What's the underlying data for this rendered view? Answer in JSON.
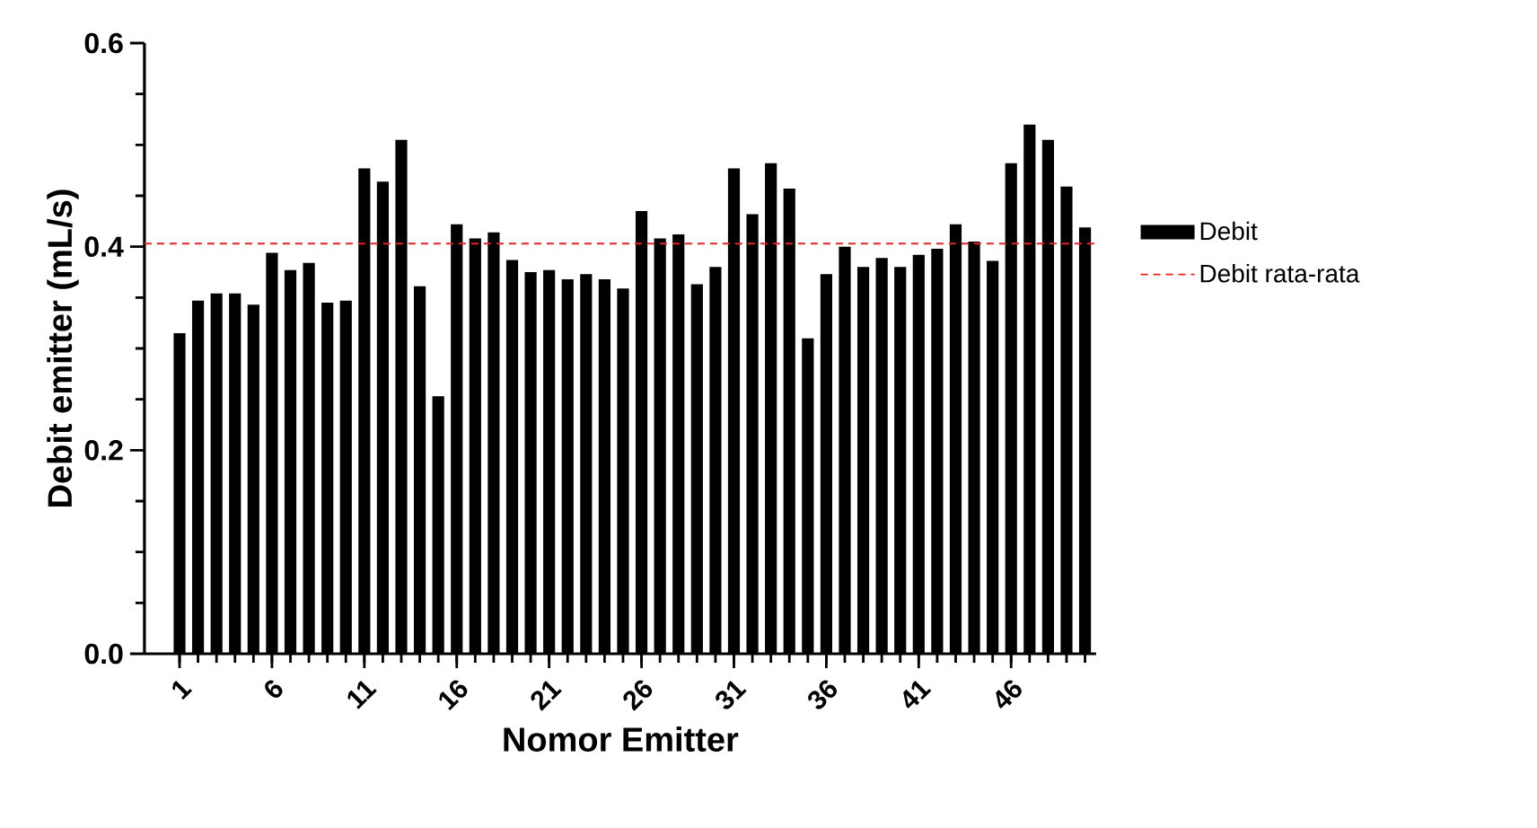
{
  "chart_data": {
    "type": "bar",
    "xlabel": "Nomor Emitter",
    "ylabel": "Debit emitter (mL/s)",
    "categories": [
      "1",
      null,
      null,
      null,
      null,
      "6",
      null,
      null,
      null,
      null,
      "11",
      null,
      null,
      null,
      null,
      "16",
      null,
      null,
      null,
      null,
      "21",
      null,
      null,
      null,
      null,
      "26",
      null,
      null,
      null,
      null,
      "31",
      null,
      null,
      null,
      null,
      "36",
      null,
      null,
      null,
      null,
      "41",
      null,
      null,
      null,
      null,
      "46",
      null,
      null,
      null,
      null
    ],
    "series": [
      {
        "name": "Debit",
        "color": "#000000",
        "values": [
          0.315,
          0.347,
          0.354,
          0.354,
          0.343,
          0.394,
          0.377,
          0.384,
          0.345,
          0.347,
          0.477,
          0.464,
          0.505,
          0.361,
          0.253,
          0.422,
          0.408,
          0.414,
          0.387,
          0.375,
          0.377,
          0.368,
          0.373,
          0.368,
          0.359,
          0.435,
          0.408,
          0.412,
          0.363,
          0.38,
          0.477,
          0.432,
          0.482,
          0.457,
          0.31,
          0.373,
          0.4,
          0.38,
          0.389,
          0.38,
          0.392,
          0.398,
          0.422,
          0.405,
          0.386,
          0.482,
          0.52,
          0.505,
          0.459,
          0.419
        ]
      }
    ],
    "ylim": [
      0,
      0.6
    ],
    "yticks": [
      {
        "value": 0,
        "label": "0.0"
      },
      {
        "value": 0.2,
        "label": "0.2"
      },
      {
        "value": 0.4,
        "label": "0.4"
      },
      {
        "value": 0.6,
        "label": "0.6"
      }
    ],
    "ref_lines": [
      {
        "axis": "y",
        "value": 0.403,
        "label": "Debit rata-rata",
        "color": "#e8221e",
        "line_style": "dashed"
      }
    ],
    "grid": false,
    "legend": "right"
  }
}
